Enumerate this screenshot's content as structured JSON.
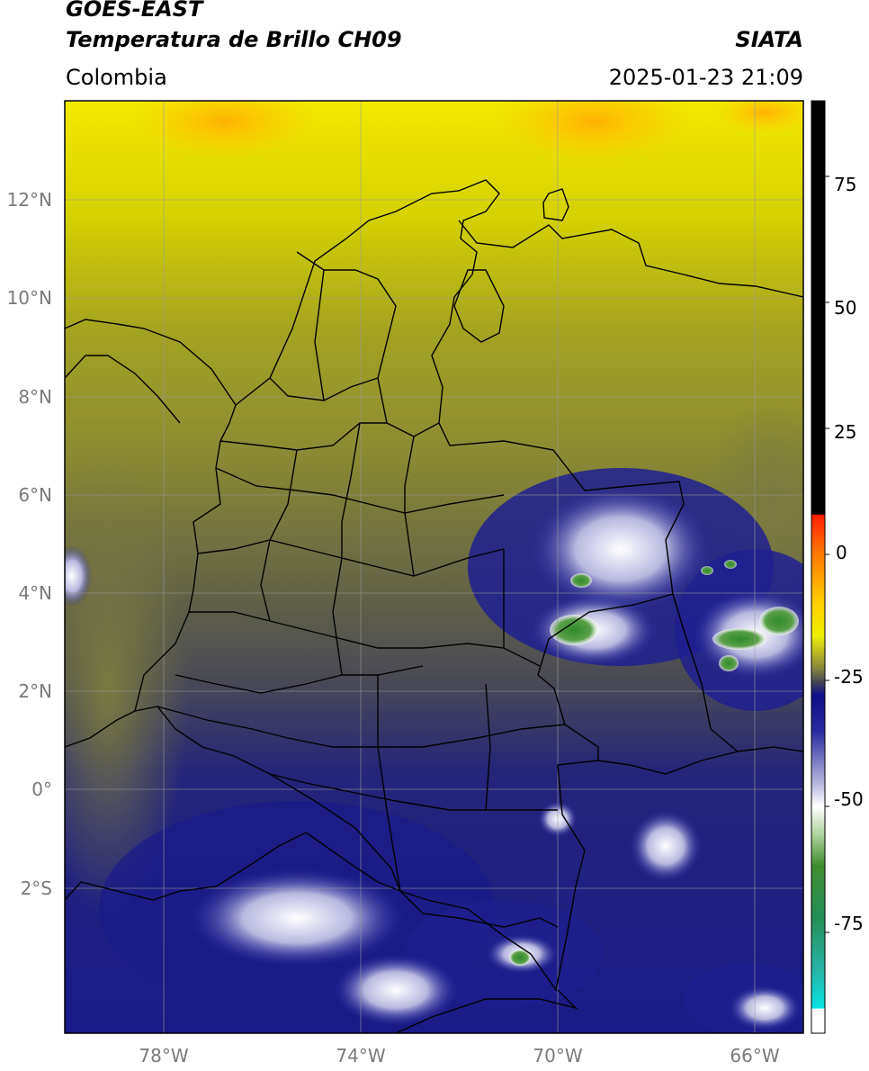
{
  "header": {
    "satellite": "GOES-EAST",
    "product": "Temperatura de Brillo CH09",
    "region": "Colombia",
    "source": "SIATA",
    "datetime": "2025-01-23 21:09"
  },
  "map": {
    "lat_labels": [
      "12°N",
      "10°N",
      "8°N",
      "6°N",
      "4°N",
      "2°N",
      "0°",
      "2°S"
    ],
    "lon_labels": [
      "78°W",
      "74°W",
      "70°W",
      "66°W"
    ],
    "extent": {
      "lon_min": -80,
      "lon_max": -65,
      "lat_min": -5,
      "lat_max": 14
    }
  },
  "colorbar": {
    "range": [
      -95,
      90
    ],
    "tick_labels": [
      "75",
      "50",
      "25",
      "0",
      "-25",
      "-50",
      "-75"
    ],
    "tick_values": [
      75,
      50,
      25,
      0,
      -25,
      -50,
      -75
    ],
    "stops": [
      {
        "value": 90,
        "color": "#000000"
      },
      {
        "value": 8,
        "color": "#000000"
      },
      {
        "value": 7.9,
        "color": "#ff1a00"
      },
      {
        "value": 0,
        "color": "#ff7a00"
      },
      {
        "value": -10,
        "color": "#ffd200"
      },
      {
        "value": -16,
        "color": "#eeee00"
      },
      {
        "value": -22,
        "color": "#8c8c30"
      },
      {
        "value": -25,
        "color": "#4a4a50"
      },
      {
        "value": -28,
        "color": "#10108a"
      },
      {
        "value": -35,
        "color": "#2a2aa0"
      },
      {
        "value": -45,
        "color": "#b0b0dc"
      },
      {
        "value": -50,
        "color": "#ffffff"
      },
      {
        "value": -55,
        "color": "#b8d8a8"
      },
      {
        "value": -62,
        "color": "#3a8a2a"
      },
      {
        "value": -72,
        "color": "#1a8a50"
      },
      {
        "value": -82,
        "color": "#20b0a0"
      },
      {
        "value": -90,
        "color": "#00e0e0"
      },
      {
        "value": -90.1,
        "color": "#ffffff"
      },
      {
        "value": -95,
        "color": "#ffffff"
      }
    ]
  }
}
